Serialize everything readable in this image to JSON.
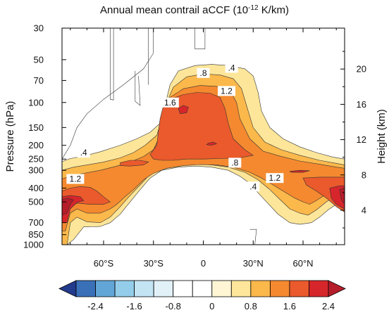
{
  "chart_data": {
    "type": "contour",
    "title": "Annual mean contrail aCCF (10",
    "title_sup": "-12",
    "title_suffix": " K/km)",
    "ylabel": "Pressure (hPa)",
    "ylabel_right": "Height (km)",
    "xlim": [
      -85,
      85
    ],
    "pressure_lim": [
      1000,
      30
    ],
    "x_ticks": [
      {
        "value": -60,
        "label": "60°S"
      },
      {
        "value": -30,
        "label": "30°S"
      },
      {
        "value": 0,
        "label": "0"
      },
      {
        "value": 30,
        "label": "30°N"
      },
      {
        "value": 60,
        "label": "60°N"
      }
    ],
    "pressure_ticks": [
      {
        "value": 30,
        "label": "30"
      },
      {
        "value": 50,
        "label": "50"
      },
      {
        "value": 70,
        "label": "70"
      },
      {
        "value": 100,
        "label": "100"
      },
      {
        "value": 150,
        "label": "150"
      },
      {
        "value": 200,
        "label": "200"
      },
      {
        "value": 250,
        "label": "250"
      },
      {
        "value": 300,
        "label": "300"
      },
      {
        "value": 400,
        "label": "400"
      },
      {
        "value": 500,
        "label": "500"
      },
      {
        "value": 700,
        "label": "700"
      },
      {
        "value": 850,
        "label": "850"
      },
      {
        "value": 1000,
        "label": "1000"
      }
    ],
    "height_ticks": [
      {
        "value": 4,
        "label": "4"
      },
      {
        "value": 8,
        "label": "8"
      },
      {
        "value": 12,
        "label": "12"
      },
      {
        "value": 16,
        "label": "16"
      },
      {
        "value": 20,
        "label": "20"
      }
    ],
    "contour_levels": [
      -2.8,
      -2.4,
      -2.0,
      -1.6,
      -1.2,
      -0.8,
      -0.4,
      0,
      0.4,
      0.8,
      1.2,
      1.6,
      2.0,
      2.4,
      2.8
    ],
    "level_colors": [
      "#233b8c",
      "#3a70b8",
      "#62a6d8",
      "#94cdea",
      "#c3e4f3",
      "#e2f1f8",
      "#ffffff",
      "#ffffff",
      "#fef6d4",
      "#fde69a",
      "#fbb84b",
      "#f4892f",
      "#ea5a2c",
      "#d6262b",
      "#b51d2a"
    ],
    "colorbar_labels": [
      {
        "value": -2.4,
        "label": "-2.4"
      },
      {
        "value": -1.6,
        "label": "-1.6"
      },
      {
        "value": -0.8,
        "label": "-0.8"
      },
      {
        "value": 0,
        "label": "0"
      },
      {
        "value": 0.8,
        "label": "0.8"
      },
      {
        "value": 1.6,
        "label": "1.6"
      },
      {
        "value": 2.4,
        "label": "2.4"
      }
    ],
    "contour_line_labels": [
      {
        "text": ".4",
        "lat": -72,
        "p": 225
      },
      {
        "text": "1.2",
        "lat": -77,
        "p": 345
      },
      {
        "text": "1.6",
        "lat": -20,
        "p": 100
      },
      {
        "text": ".8",
        "lat": 0,
        "p": 62
      },
      {
        "text": ".4",
        "lat": 17,
        "p": 57
      },
      {
        "text": "1.2",
        "lat": 14,
        "p": 83
      },
      {
        "text": ".8",
        "lat": 19,
        "p": 265
      },
      {
        "text": "1.2",
        "lat": 43,
        "p": 340
      },
      {
        "text": ".4",
        "lat": 30,
        "p": 390
      }
    ],
    "regions": [
      {
        "level_min": 0.4,
        "polygon": [
          [
            -85,
            260
          ],
          [
            -80,
            248
          ],
          [
            -72,
            238
          ],
          [
            -62,
            222
          ],
          [
            -50,
            200
          ],
          [
            -40,
            180
          ],
          [
            -32,
            162
          ],
          [
            -26,
            140
          ],
          [
            -23,
            105
          ],
          [
            -20,
            75
          ],
          [
            -15,
            60
          ],
          [
            -5,
            55
          ],
          [
            5,
            54
          ],
          [
            15,
            55
          ],
          [
            25,
            58
          ],
          [
            30,
            65
          ],
          [
            33,
            85
          ],
          [
            35,
            115
          ],
          [
            40,
            150
          ],
          [
            48,
            180
          ],
          [
            58,
            205
          ],
          [
            68,
            225
          ],
          [
            78,
            242
          ],
          [
            85,
            250
          ],
          [
            85,
            460
          ],
          [
            80,
            520
          ],
          [
            75,
            570
          ],
          [
            70,
            640
          ],
          [
            65,
            700
          ],
          [
            58,
            720
          ],
          [
            52,
            700
          ],
          [
            45,
            610
          ],
          [
            38,
            500
          ],
          [
            32,
            420
          ],
          [
            28,
            370
          ],
          [
            22,
            330
          ],
          [
            15,
            300
          ],
          [
            5,
            285
          ],
          [
            -5,
            280
          ],
          [
            -15,
            285
          ],
          [
            -25,
            300
          ],
          [
            -32,
            340
          ],
          [
            -38,
            410
          ],
          [
            -44,
            500
          ],
          [
            -50,
            610
          ],
          [
            -56,
            700
          ],
          [
            -62,
            745
          ],
          [
            -72,
            750
          ],
          [
            -78,
            920
          ],
          [
            -82,
            1000
          ],
          [
            -85,
            1000
          ]
        ]
      },
      {
        "level_min": 0.8,
        "polygon": [
          [
            -85,
            300
          ],
          [
            -78,
            285
          ],
          [
            -70,
            275
          ],
          [
            -60,
            262
          ],
          [
            -50,
            245
          ],
          [
            -42,
            225
          ],
          [
            -35,
            200
          ],
          [
            -28,
            170
          ],
          [
            -25,
            130
          ],
          [
            -22,
            100
          ],
          [
            -18,
            78
          ],
          [
            -10,
            66
          ],
          [
            0,
            63
          ],
          [
            10,
            64
          ],
          [
            18,
            68
          ],
          [
            23,
            80
          ],
          [
            26,
            105
          ],
          [
            30,
            150
          ],
          [
            37,
            190
          ],
          [
            47,
            215
          ],
          [
            58,
            235
          ],
          [
            70,
            255
          ],
          [
            80,
            268
          ],
          [
            85,
            275
          ],
          [
            85,
            410
          ],
          [
            80,
            450
          ],
          [
            74,
            500
          ],
          [
            68,
            570
          ],
          [
            63,
            620
          ],
          [
            58,
            600
          ],
          [
            52,
            560
          ],
          [
            46,
            480
          ],
          [
            40,
            410
          ],
          [
            33,
            350
          ],
          [
            25,
            310
          ],
          [
            15,
            285
          ],
          [
            5,
            275
          ],
          [
            -5,
            272
          ],
          [
            -15,
            278
          ],
          [
            -25,
            290
          ],
          [
            -32,
            320
          ],
          [
            -38,
            380
          ],
          [
            -44,
            450
          ],
          [
            -50,
            540
          ],
          [
            -56,
            640
          ],
          [
            -62,
            700
          ],
          [
            -70,
            690
          ],
          [
            -76,
            640
          ],
          [
            -80,
            700
          ],
          [
            -82,
            1000
          ],
          [
            -85,
            1000
          ]
        ]
      },
      {
        "level_min": 1.2,
        "polygon": [
          [
            -85,
            345
          ],
          [
            -80,
            330
          ],
          [
            -72,
            315
          ],
          [
            -62,
            300
          ],
          [
            -52,
            280
          ],
          [
            -44,
            262
          ],
          [
            -36,
            240
          ],
          [
            -30,
            215
          ],
          [
            -26,
            170
          ],
          [
            -24,
            125
          ],
          [
            -20,
            92
          ],
          [
            -12,
            80
          ],
          [
            -2,
            76
          ],
          [
            8,
            77
          ],
          [
            16,
            82
          ],
          [
            20,
            100
          ],
          [
            22,
            130
          ],
          [
            28,
            180
          ],
          [
            36,
            220
          ],
          [
            46,
            238
          ],
          [
            58,
            258
          ],
          [
            70,
            272
          ],
          [
            80,
            285
          ],
          [
            85,
            290
          ],
          [
            85,
            380
          ],
          [
            80,
            405
          ],
          [
            74,
            440
          ],
          [
            68,
            490
          ],
          [
            64,
            520
          ],
          [
            60,
            500
          ],
          [
            55,
            470
          ],
          [
            48,
            420
          ],
          [
            42,
            380
          ],
          [
            35,
            340
          ],
          [
            28,
            310
          ],
          [
            18,
            285
          ],
          [
            8,
            275
          ],
          [
            -2,
            273
          ],
          [
            -12,
            278
          ],
          [
            -22,
            290
          ],
          [
            -30,
            315
          ],
          [
            -36,
            350
          ],
          [
            -42,
            410
          ],
          [
            -48,
            470
          ],
          [
            -52,
            520
          ],
          [
            -56,
            560
          ],
          [
            -62,
            600
          ],
          [
            -70,
            600
          ],
          [
            -76,
            560
          ],
          [
            -80,
            600
          ],
          [
            -83,
            800
          ],
          [
            -85,
            800
          ]
        ]
      },
      {
        "level_min": 1.6,
        "polygon": [
          [
            -26,
            130
          ],
          [
            -24,
            105
          ],
          [
            -20,
            95
          ],
          [
            -12,
            88
          ],
          [
            -4,
            85
          ],
          [
            4,
            86
          ],
          [
            10,
            92
          ],
          [
            13,
            110
          ],
          [
            15,
            140
          ],
          [
            18,
            180
          ],
          [
            25,
            215
          ],
          [
            30,
            235
          ],
          [
            22,
            245
          ],
          [
            10,
            248
          ],
          [
            0,
            250
          ],
          [
            -10,
            250
          ],
          [
            -18,
            255
          ],
          [
            -25,
            255
          ],
          [
            -30,
            250
          ],
          [
            -32,
            232
          ],
          [
            -28,
            200
          ],
          [
            -27,
            160
          ]
        ]
      },
      {
        "level_min": 1.6,
        "polygon": [
          [
            -50,
            265
          ],
          [
            -44,
            255
          ],
          [
            -38,
            255
          ],
          [
            -33,
            262
          ],
          [
            -36,
            275
          ],
          [
            -44,
            280
          ],
          [
            -50,
            278
          ]
        ]
      },
      {
        "level_min": 1.6,
        "polygon": [
          [
            -85,
            420
          ],
          [
            -80,
            400
          ],
          [
            -74,
            390
          ],
          [
            -68,
            395
          ],
          [
            -64,
            420
          ],
          [
            -60,
            460
          ],
          [
            -56,
            500
          ],
          [
            -60,
            520
          ],
          [
            -68,
            520
          ],
          [
            -76,
            510
          ],
          [
            -82,
            560
          ],
          [
            -85,
            580
          ]
        ]
      },
      {
        "level_min": 1.6,
        "polygon": [
          [
            60,
            340
          ],
          [
            70,
            335
          ],
          [
            80,
            335
          ],
          [
            85,
            335
          ],
          [
            85,
            590
          ],
          [
            80,
            540
          ],
          [
            74,
            470
          ],
          [
            68,
            420
          ],
          [
            62,
            380
          ]
        ]
      },
      {
        "level_min": 2.0,
        "polygon": [
          [
            -85,
            460
          ],
          [
            -80,
            450
          ],
          [
            -74,
            460
          ],
          [
            -72,
            490
          ],
          [
            -76,
            505
          ],
          [
            -80,
            560
          ],
          [
            -82,
            700
          ],
          [
            -85,
            700
          ]
        ]
      },
      {
        "level_min": 2.0,
        "polygon": [
          [
            76,
            400
          ],
          [
            82,
            385
          ],
          [
            85,
            385
          ],
          [
            85,
            560
          ],
          [
            80,
            520
          ],
          [
            77,
            470
          ]
        ]
      },
      {
        "level_min": 2.0,
        "polygon": [
          [
            -15,
            110
          ],
          [
            -12,
            105
          ],
          [
            -9,
            108
          ],
          [
            -10,
            118
          ],
          [
            -14,
            120
          ]
        ]
      },
      {
        "level_min": 2.0,
        "polygon": [
          [
            3,
            193
          ],
          [
            6,
            190
          ],
          [
            8,
            195
          ],
          [
            5,
            200
          ],
          [
            2,
            198
          ]
        ]
      },
      {
        "level_min": 2.0,
        "polygon": [
          [
            52,
            305
          ],
          [
            58,
            300
          ],
          [
            64,
            302
          ],
          [
            60,
            310
          ],
          [
            53,
            310
          ]
        ]
      },
      {
        "level_min": 2.4,
        "polygon": [
          [
            -85,
            480
          ],
          [
            -81,
            470
          ],
          [
            -78,
            485
          ],
          [
            -80,
            520
          ],
          [
            -82,
            600
          ],
          [
            -85,
            620
          ]
        ]
      },
      {
        "level_min": 2.4,
        "polygon": [
          [
            82,
            410
          ],
          [
            85,
            400
          ],
          [
            85,
            520
          ],
          [
            83,
            480
          ]
        ]
      }
    ],
    "zero_lines": [
      [
        [
          -85,
          250
        ],
        [
          -80,
          200
        ],
        [
          -76,
          150
        ],
        [
          -70,
          120
        ],
        [
          -60,
          95
        ],
        [
          -48,
          75
        ],
        [
          -36,
          58
        ],
        [
          -30,
          45
        ],
        [
          -30,
          30
        ]
      ],
      [
        [
          -56,
          30
        ],
        [
          -56,
          95
        ],
        [
          -54,
          96
        ],
        [
          -54,
          30
        ]
      ],
      [
        [
          -5,
          30
        ],
        [
          -5,
          42
        ],
        [
          1,
          42
        ],
        [
          1,
          30
        ]
      ],
      [
        [
          -33,
          30
        ],
        [
          -33,
          75
        ]
      ],
      [
        [
          -41,
          60
        ],
        [
          -41,
          98
        ],
        [
          -38,
          105
        ],
        [
          -39,
          65
        ]
      ],
      [
        [
          28,
          780
        ],
        [
          32,
          780
        ],
        [
          31,
          1000
        ],
        [
          29,
          1000
        ]
      ]
    ]
  }
}
